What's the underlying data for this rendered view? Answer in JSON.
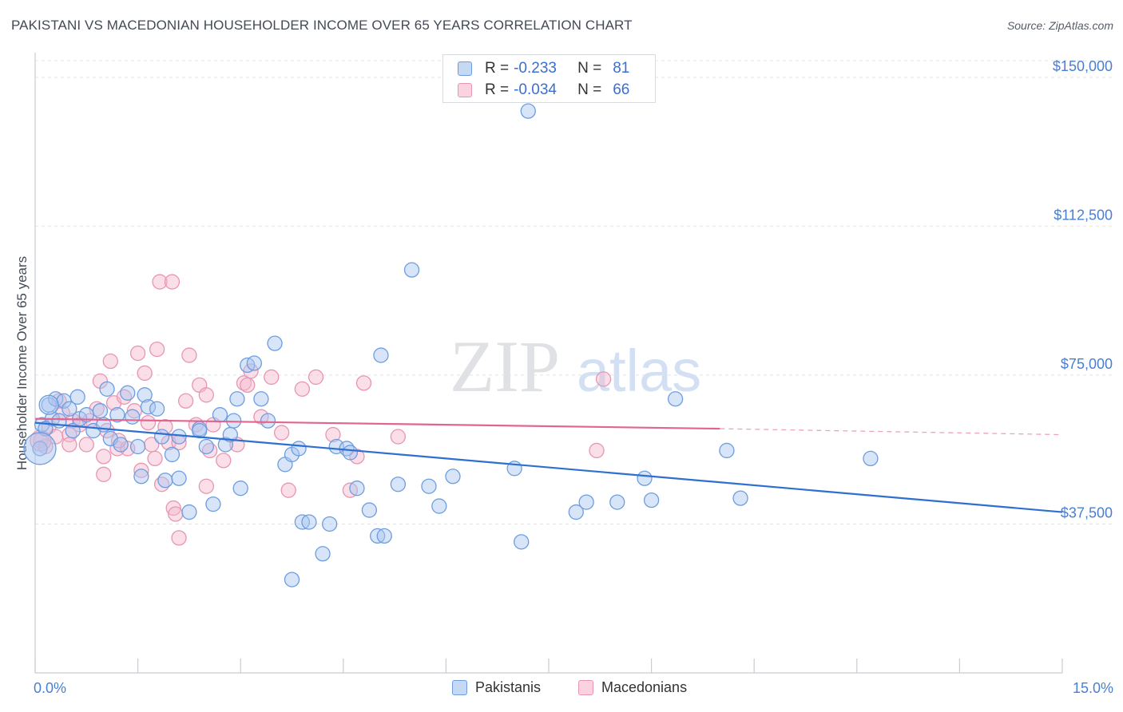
{
  "header": {
    "title": "PAKISTANI VS MACEDONIAN HOUSEHOLDER INCOME OVER 65 YEARS CORRELATION CHART",
    "source": "Source: ZipAtlas.com"
  },
  "watermark": {
    "zip": "ZIP",
    "atlas": "atlas"
  },
  "legend": {
    "rows": [
      {
        "r_label": "R =",
        "r_value": "-0.233",
        "n_label": "N =",
        "n_value": "81",
        "color": "#a9c6f0"
      },
      {
        "r_label": "R =",
        "r_value": "-0.034",
        "n_label": "N =",
        "n_value": "66",
        "color": "#f5b8cc"
      }
    ]
  },
  "bottom_legend": [
    {
      "name": "Pakistanis",
      "color": "#a9c6f0"
    },
    {
      "name": "Macedonians",
      "color": "#f5b8cc"
    }
  ],
  "chart_data": {
    "type": "scatter",
    "title": "PAKISTANI VS MACEDONIAN HOUSEHOLDER INCOME OVER 65 YEARS CORRELATION CHART",
    "ylabel": "Householder Income Over 65 years",
    "xlabel": "",
    "xlim": [
      0,
      15
    ],
    "ylim": [
      0,
      155000
    ],
    "x_tick_labels": [
      "0.0%",
      "15.0%"
    ],
    "y_ticks": [
      37500,
      75000,
      112500,
      150000
    ],
    "y_tick_labels": [
      "$37,500",
      "$75,000",
      "$112,500",
      "$150,000"
    ],
    "grid": true,
    "legend_position": "top-center",
    "colors": {
      "pakistanis_fill": "#a9c6f0",
      "pakistanis_stroke": "#6d9de0",
      "pakistanis_line": "#2f6fd0",
      "macedonians_fill": "#f5b8cc",
      "macedonians_stroke": "#e895b2",
      "macedonians_line": "#e06690"
    },
    "series": [
      {
        "name": "Pakistanis",
        "trend": {
          "x0": 0.0,
          "y0": 63000,
          "x1": 15.0,
          "y1": 40500
        },
        "points": [
          [
            0.07,
            56500
          ],
          [
            0.1,
            62500
          ],
          [
            0.2,
            67500
          ],
          [
            0.25,
            64000
          ],
          [
            0.3,
            69000
          ],
          [
            0.35,
            63500
          ],
          [
            0.42,
            68500
          ],
          [
            0.5,
            66500
          ],
          [
            0.55,
            61000
          ],
          [
            0.62,
            69500
          ],
          [
            0.65,
            64000
          ],
          [
            0.75,
            65000
          ],
          [
            0.85,
            61000
          ],
          [
            0.95,
            66000
          ],
          [
            1.0,
            62500
          ],
          [
            1.05,
            71500
          ],
          [
            1.1,
            59000
          ],
          [
            1.2,
            65000
          ],
          [
            1.25,
            57500
          ],
          [
            1.35,
            70500
          ],
          [
            1.42,
            64500
          ],
          [
            1.5,
            57000
          ],
          [
            1.6,
            70000
          ],
          [
            1.65,
            67000
          ],
          [
            1.78,
            66500
          ],
          [
            1.85,
            59500
          ],
          [
            1.9,
            48500
          ],
          [
            2.0,
            55000
          ],
          [
            2.1,
            59500
          ],
          [
            2.25,
            40500
          ],
          [
            2.4,
            61500
          ],
          [
            2.4,
            61000
          ],
          [
            2.5,
            57000
          ],
          [
            2.6,
            42500
          ],
          [
            2.7,
            65000
          ],
          [
            2.78,
            57500
          ],
          [
            2.85,
            60000
          ],
          [
            2.9,
            63500
          ],
          [
            2.95,
            69000
          ],
          [
            3.0,
            46500
          ],
          [
            3.1,
            77500
          ],
          [
            3.2,
            78000
          ],
          [
            3.3,
            69000
          ],
          [
            3.4,
            63500
          ],
          [
            3.5,
            83000
          ],
          [
            3.65,
            52500
          ],
          [
            3.75,
            55000
          ],
          [
            3.85,
            56500
          ],
          [
            3.9,
            38000
          ],
          [
            4.0,
            38000
          ],
          [
            4.2,
            30000
          ],
          [
            4.3,
            37500
          ],
          [
            4.4,
            57000
          ],
          [
            4.55,
            56500
          ],
          [
            4.6,
            55500
          ],
          [
            4.7,
            46500
          ],
          [
            4.88,
            41000
          ],
          [
            5.0,
            34500
          ],
          [
            5.05,
            80000
          ],
          [
            5.1,
            34500
          ],
          [
            5.3,
            47500
          ],
          [
            5.5,
            101500
          ],
          [
            5.75,
            47000
          ],
          [
            5.9,
            42000
          ],
          [
            6.1,
            49500
          ],
          [
            7.0,
            51500
          ],
          [
            7.1,
            33000
          ],
          [
            7.2,
            141500
          ],
          [
            7.9,
            40500
          ],
          [
            8.05,
            43000
          ],
          [
            8.5,
            43000
          ],
          [
            8.9,
            49000
          ],
          [
            9.0,
            43500
          ],
          [
            9.35,
            69000
          ],
          [
            10.1,
            56000
          ],
          [
            10.3,
            44000
          ],
          [
            12.2,
            54000
          ],
          [
            3.75,
            23500
          ],
          [
            2.1,
            49000
          ],
          [
            1.55,
            49500
          ],
          [
            0.15,
            61500
          ]
        ]
      },
      {
        "name": "Macedonians",
        "trend": {
          "x0": 0.0,
          "y0": 64000,
          "x1": 10.0,
          "y1": 61500
        },
        "trend_dashed": {
          "x0": 10.0,
          "y0": 61500,
          "x1": 15.0,
          "y1": 60000
        },
        "points": [
          [
            0.08,
            58500
          ],
          [
            0.15,
            57000
          ],
          [
            0.2,
            62000
          ],
          [
            0.3,
            59500
          ],
          [
            0.4,
            65500
          ],
          [
            0.5,
            60000
          ],
          [
            0.55,
            63500
          ],
          [
            0.65,
            62500
          ],
          [
            0.75,
            57500
          ],
          [
            0.8,
            63500
          ],
          [
            0.9,
            66500
          ],
          [
            0.95,
            73500
          ],
          [
            1.0,
            54500
          ],
          [
            1.05,
            61000
          ],
          [
            1.1,
            78500
          ],
          [
            1.15,
            68000
          ],
          [
            1.2,
            56500
          ],
          [
            1.3,
            69500
          ],
          [
            1.35,
            56500
          ],
          [
            1.45,
            66000
          ],
          [
            1.5,
            80500
          ],
          [
            1.55,
            51000
          ],
          [
            1.6,
            75500
          ],
          [
            1.65,
            63000
          ],
          [
            1.7,
            57500
          ],
          [
            1.78,
            81500
          ],
          [
            1.82,
            98500
          ],
          [
            1.85,
            47500
          ],
          [
            1.9,
            62000
          ],
          [
            1.95,
            58000
          ],
          [
            2.0,
            98500
          ],
          [
            2.02,
            41500
          ],
          [
            2.05,
            40000
          ],
          [
            2.1,
            58000
          ],
          [
            2.2,
            68500
          ],
          [
            2.25,
            80000
          ],
          [
            2.35,
            62500
          ],
          [
            2.4,
            72500
          ],
          [
            2.5,
            70000
          ],
          [
            2.55,
            56000
          ],
          [
            2.6,
            62500
          ],
          [
            2.75,
            53500
          ],
          [
            2.95,
            57500
          ],
          [
            3.05,
            73000
          ],
          [
            3.1,
            72500
          ],
          [
            3.15,
            76000
          ],
          [
            3.3,
            64500
          ],
          [
            3.45,
            74500
          ],
          [
            3.6,
            60500
          ],
          [
            3.7,
            46000
          ],
          [
            3.9,
            71500
          ],
          [
            4.1,
            74500
          ],
          [
            4.35,
            60000
          ],
          [
            4.6,
            46000
          ],
          [
            4.7,
            54500
          ],
          [
            4.8,
            73000
          ],
          [
            5.3,
            59500
          ],
          [
            8.2,
            56000
          ],
          [
            8.3,
            74000
          ],
          [
            0.35,
            68500
          ],
          [
            1.75,
            54000
          ],
          [
            1.22,
            58500
          ],
          [
            2.5,
            47000
          ],
          [
            0.5,
            57500
          ],
          [
            1.0,
            50000
          ],
          [
            2.1,
            34000
          ]
        ]
      }
    ]
  }
}
